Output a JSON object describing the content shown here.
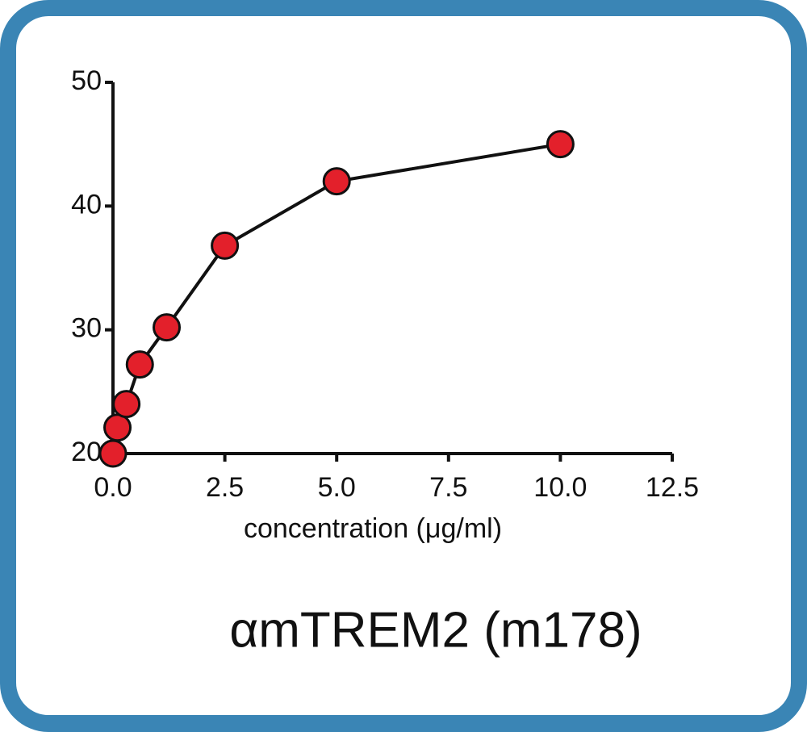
{
  "chart_data": {
    "type": "line",
    "title": "αmTREM2 (m178)",
    "xlabel": "concentration (μg/ml)",
    "x": [
      0,
      0.1,
      0.3,
      0.6,
      1.2,
      2.5,
      5,
      10
    ],
    "values": [
      20,
      22.1,
      24,
      27.2,
      30.2,
      36.8,
      42,
      45
    ],
    "color": "#e3202b",
    "xlim": [
      0,
      12.5
    ],
    "ylim": [
      20,
      50
    ],
    "xticks": [
      {
        "value": 0,
        "label": "0.0"
      },
      2.5,
      {
        "value": 5,
        "label": "5.0"
      },
      7.5,
      {
        "value": 10,
        "label": "10.0"
      },
      12.5
    ],
    "yticks": [
      20,
      30,
      40,
      50
    ],
    "grid": false
  }
}
